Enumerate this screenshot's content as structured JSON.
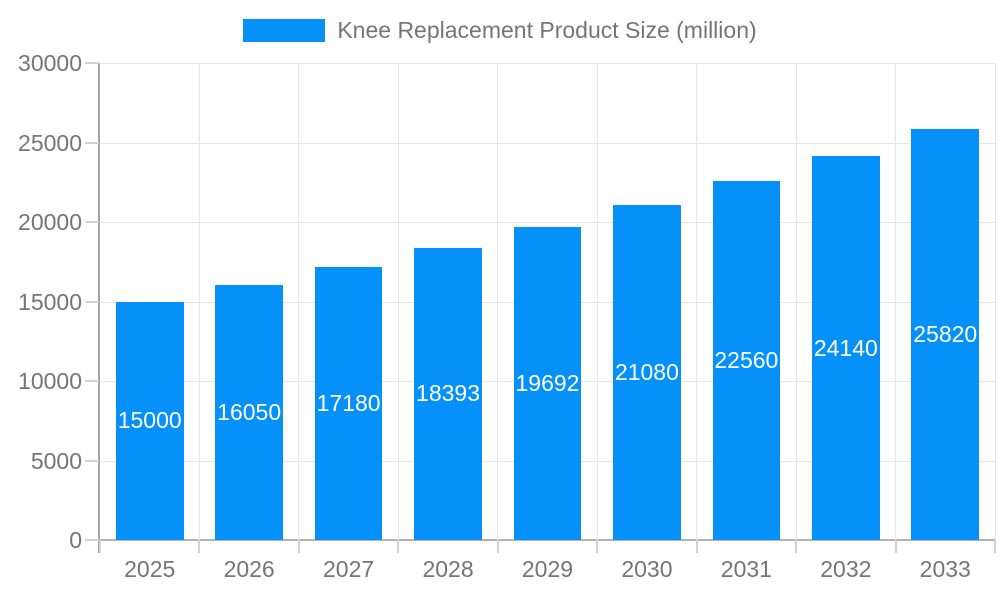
{
  "chart_data": {
    "type": "bar",
    "title": "Knee Replacement Product Size (million)",
    "legend_entries": [
      "Knee Replacement Product Size (million)"
    ],
    "legend_position": "top-center",
    "categories": [
      "2025",
      "2026",
      "2027",
      "2028",
      "2029",
      "2030",
      "2031",
      "2032",
      "2033"
    ],
    "values": [
      15000,
      16050,
      17180,
      18393,
      19692,
      21080,
      22560,
      24140,
      25820
    ],
    "xlabel": "",
    "ylabel": "",
    "ylim": [
      0,
      30000
    ],
    "yticks": [
      0,
      5000,
      10000,
      15000,
      20000,
      25000,
      30000
    ],
    "grid": true,
    "bar_label_position": "inside-center"
  },
  "colors": {
    "bar": "#0590fa",
    "axis_text": "#757575",
    "grid_line": "#e5e5e5",
    "axis_line": "#a3a3a3",
    "baseline": "#b3b3b3",
    "tick_line": "#d2d2d2",
    "value_label": "#ffffff",
    "background": "#ffffff"
  }
}
